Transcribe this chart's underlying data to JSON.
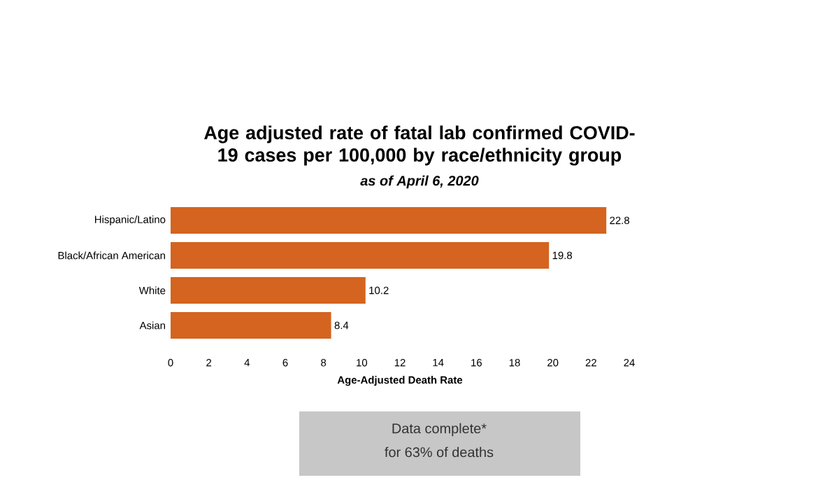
{
  "chart_data": {
    "type": "bar",
    "orientation": "horizontal",
    "title": "Age adjusted rate of fatal lab confirmed COVID-19 cases per 100,000 by race/ethnicity group",
    "subtitle": "as of April 6, 2020",
    "xlabel": "Age-Adjusted Death Rate",
    "categories": [
      "Hispanic/Latino",
      "Black/African American",
      "White",
      "Asian"
    ],
    "values": [
      22.8,
      19.8,
      10.2,
      8.4
    ],
    "color": "#d4641f",
    "xlim": [
      0,
      24
    ],
    "xticks": [
      0,
      2,
      4,
      6,
      8,
      10,
      12,
      14,
      16,
      18,
      20,
      22,
      24
    ],
    "data_labels": true,
    "annotations": [
      "Data complete*",
      "for 63% of deaths"
    ]
  }
}
